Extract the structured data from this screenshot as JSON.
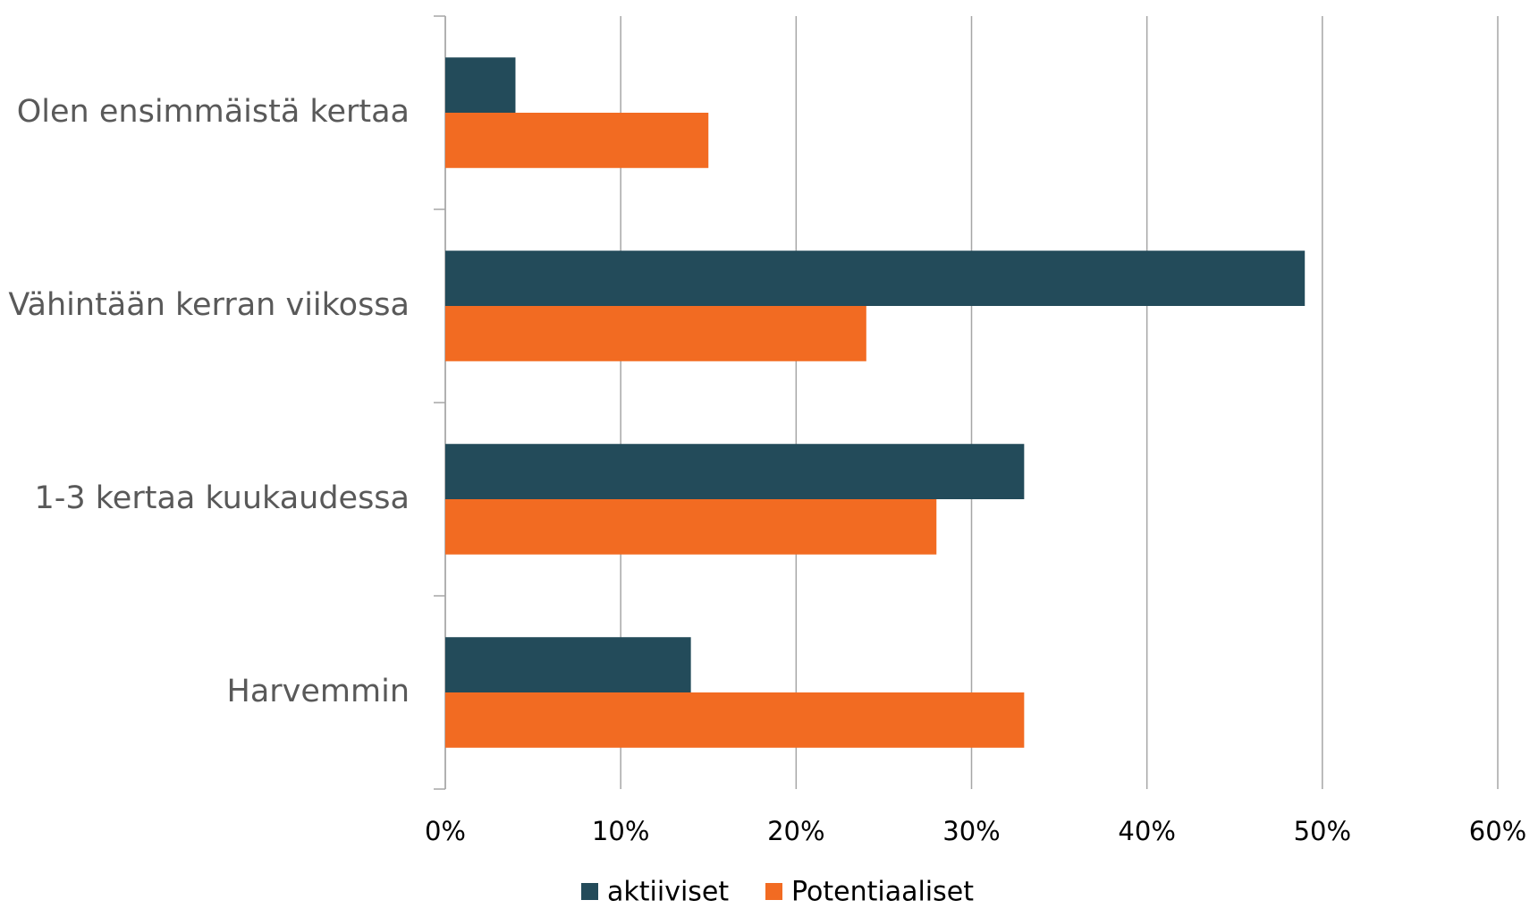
{
  "chart_data": {
    "type": "bar",
    "orientation": "horizontal",
    "categories": [
      "Olen ensimmäistä kertaa",
      "Vähintään kerran viikossa",
      "1-3 kertaa kuukaudessa",
      "Harvemmin"
    ],
    "series": [
      {
        "name": "aktiiviset",
        "color": "#234b5a",
        "values": [
          4,
          49,
          33,
          14
        ]
      },
      {
        "name": "Potentiaaliset",
        "color": "#f26b22",
        "values": [
          15,
          24,
          28,
          33
        ]
      }
    ],
    "xlim": [
      0,
      60
    ],
    "xticks": [
      {
        "value": 0,
        "label": "0%"
      },
      {
        "value": 10,
        "label": "10%"
      },
      {
        "value": 20,
        "label": "20%"
      },
      {
        "value": 30,
        "label": "30%"
      },
      {
        "value": 40,
        "label": "40%"
      },
      {
        "value": 50,
        "label": "50%"
      },
      {
        "value": 60,
        "label": "60%"
      }
    ],
    "grid": true,
    "legend": "bottom"
  }
}
